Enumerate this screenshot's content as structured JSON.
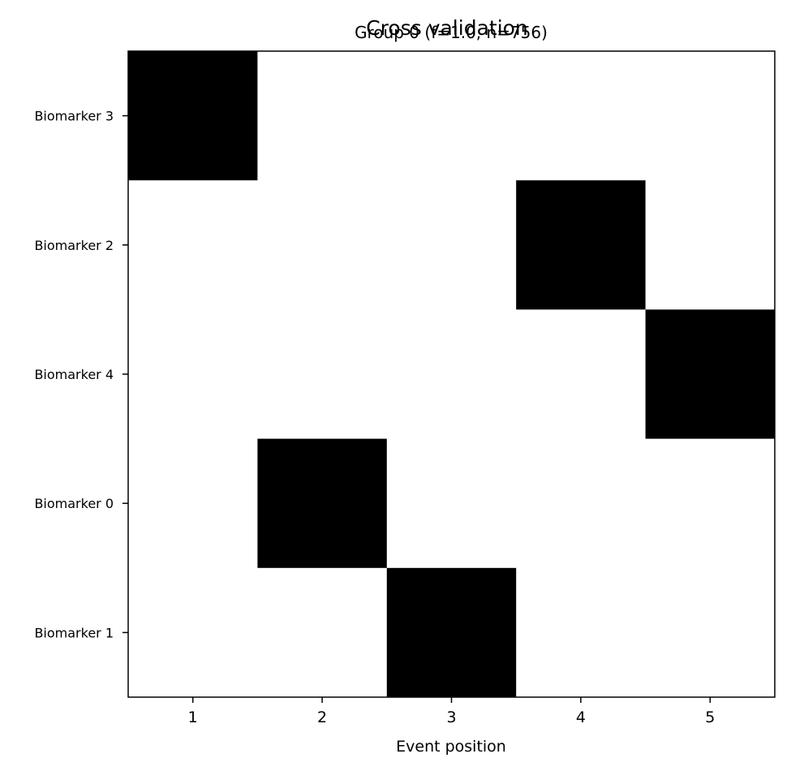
{
  "chart_data": {
    "type": "heatmap",
    "title": "Cross validation",
    "subtitle": "Group 0 (f=1.0, n=756)",
    "xlabel": "Event position",
    "ylabel": "",
    "x_ticks": [
      "1",
      "2",
      "3",
      "4",
      "5"
    ],
    "y_ticks": [
      "Biomarker 3",
      "Biomarker 2",
      "Biomarker 4",
      "Biomarker 0",
      "Biomarker 1"
    ],
    "matrix": [
      [
        1,
        0,
        0,
        0,
        0
      ],
      [
        0,
        0,
        0,
        1,
        0
      ],
      [
        0,
        0,
        0,
        0,
        1
      ],
      [
        0,
        1,
        0,
        0,
        0
      ],
      [
        0,
        0,
        1,
        0,
        0
      ]
    ],
    "value_range": [
      0,
      1
    ],
    "colormap": {
      "low": "#ffffff",
      "high": "#000000"
    },
    "grid": false
  }
}
